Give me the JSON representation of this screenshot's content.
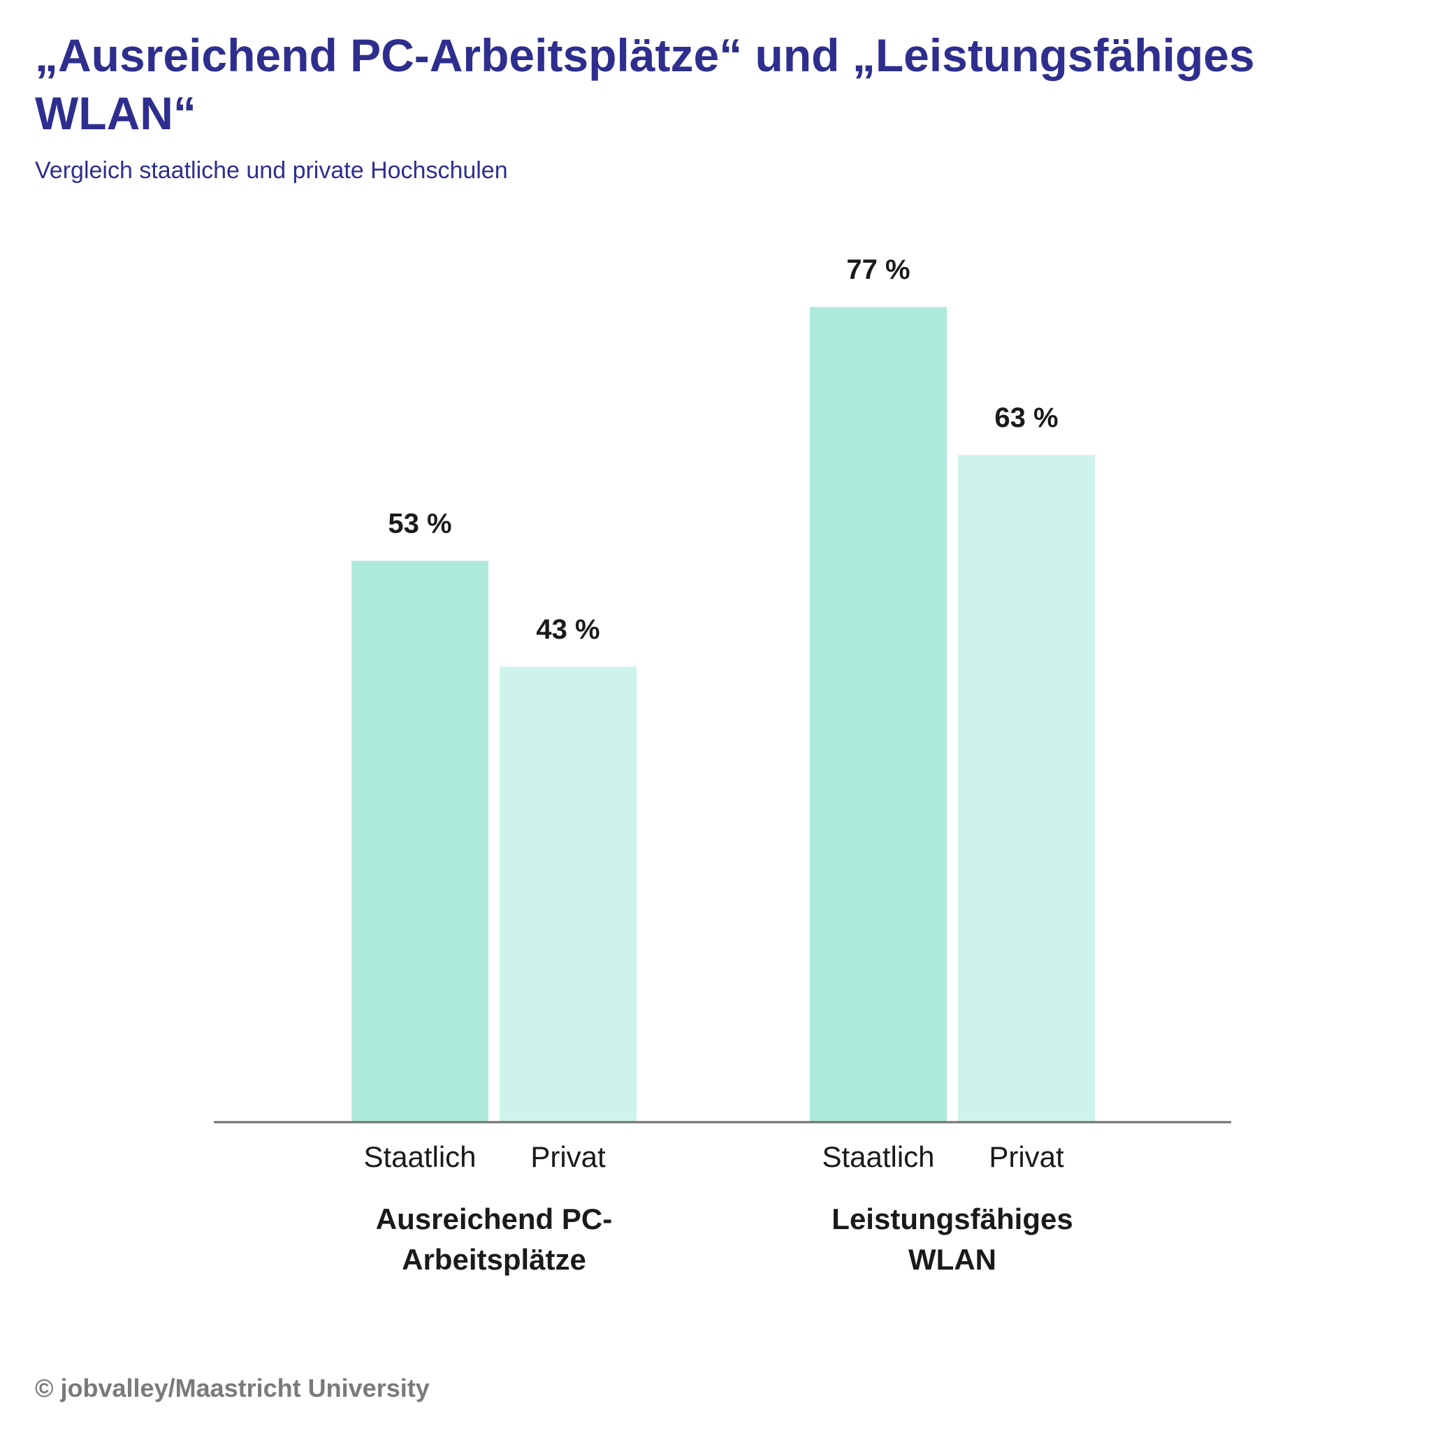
{
  "title": "„Ausreichend PC-Arbeitsplätze“ und „Leistungsfähiges WLAN“",
  "subtitle": "Vergleich staatliche und private Hochschulen",
  "footer": "© jobvalley/Maastricht University",
  "colors": {
    "title": "#2e2e8f",
    "staatlich": "#aeeadb",
    "privat": "#cdf3ea",
    "axis": "#6f6f6f"
  },
  "chart_data": {
    "type": "bar",
    "title": "„Ausreichend PC-Arbeitsplätze“ und „Leistungsfähiges WLAN“",
    "categories": [
      [
        "Ausreichend PC-",
        "Arbeitsplätze"
      ],
      [
        "Leistungsfähiges",
        "WLAN"
      ]
    ],
    "bar_labels": [
      "Staatlich",
      "Privat"
    ],
    "series": [
      {
        "name": "Staatlich",
        "values": [
          53,
          77
        ],
        "labels": [
          "53 %",
          "77 %"
        ]
      },
      {
        "name": "Privat",
        "values": [
          43,
          63
        ],
        "labels": [
          "43 %",
          "63 %"
        ]
      }
    ],
    "unit": "%",
    "ylim": [
      0,
      100
    ],
    "grid": false,
    "xlabel": "",
    "ylabel": ""
  }
}
